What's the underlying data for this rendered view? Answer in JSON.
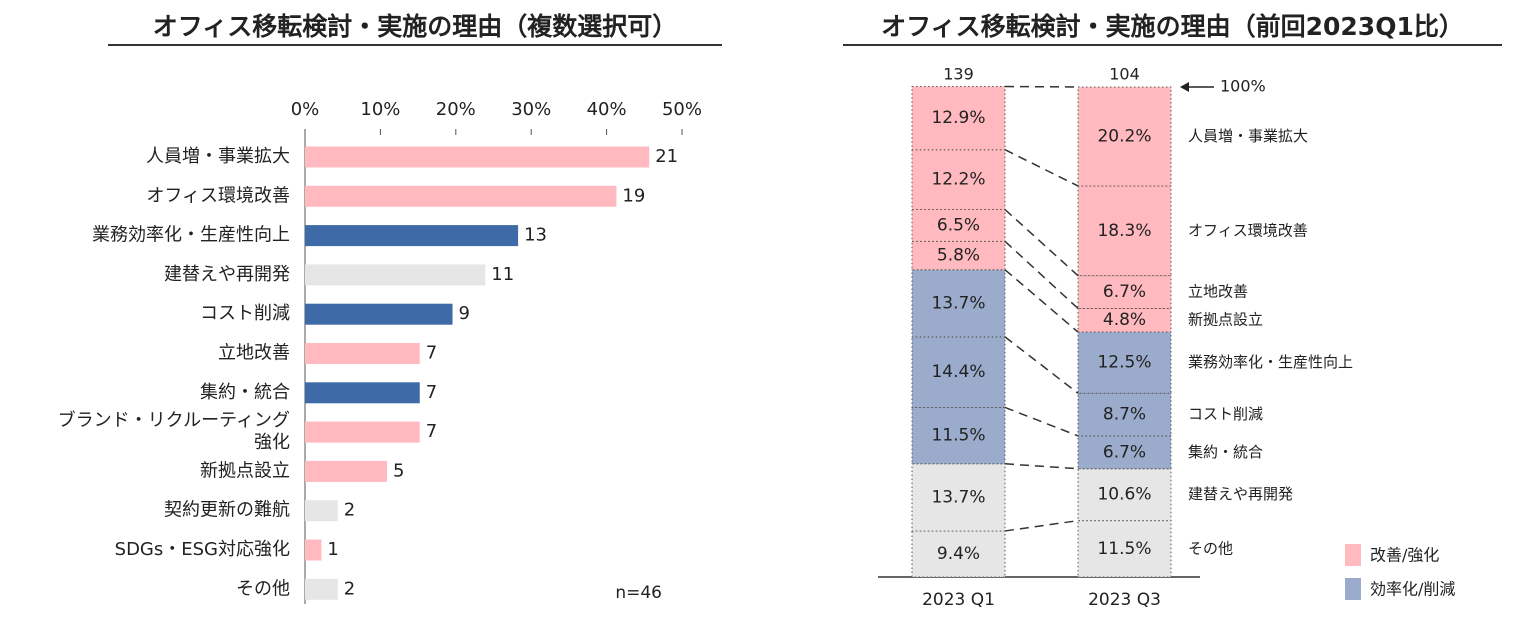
{
  "chart_data": [
    {
      "type": "hbar",
      "title": "オフィス移転検討・実施の理由（複数選択可）",
      "categories": [
        "人員増・事業拡大",
        "オフィス環境改善",
        "業務効率化・生産性向上",
        "建替えや再開発",
        "コスト削減",
        "立地改善",
        "集約・統合",
        "ブランド・リクルーティング\n強化",
        "新拠点設立",
        "契約更新の難航",
        "SDGs・ESG対応強化",
        "その他"
      ],
      "values": [
        21,
        19,
        13,
        11,
        9,
        7,
        7,
        7,
        5,
        2,
        1,
        2
      ],
      "colors": [
        "#ffb9bf",
        "#ffb9bf",
        "#3f6aa8",
        "#e6e6e6",
        "#3f6aa8",
        "#ffb9bf",
        "#3f6aa8",
        "#ffb9bf",
        "#ffb9bf",
        "#e6e6e6",
        "#ffb9bf",
        "#e6e6e6"
      ],
      "xlim": [
        0,
        23
      ],
      "xticks": [
        {
          "value": 0,
          "label": "0%"
        },
        {
          "value": 4.6,
          "label": "10%"
        },
        {
          "value": 9.2,
          "label": "20%"
        },
        {
          "value": 13.8,
          "label": "30%"
        },
        {
          "value": 18.4,
          "label": "40%"
        },
        {
          "value": 23,
          "label": "50%"
        }
      ],
      "annotation": "n=46"
    },
    {
      "type": "stacked100",
      "title": "オフィス移転検討・実施の理由（前回2023Q1比）",
      "categories": [
        "2023 Q1",
        "2023 Q3"
      ],
      "totals": [
        139,
        104
      ],
      "ylim": [
        0,
        100
      ],
      "annotation": "100%",
      "series": [
        {
          "name": "その他",
          "color": "#e6e6e6",
          "values": [
            9.4,
            11.5
          ],
          "value_labels": [
            "9.4%",
            "11.5%"
          ]
        },
        {
          "name": "建替えや再開発",
          "color": "#e6e6e6",
          "values": [
            13.7,
            10.6
          ],
          "value_labels": [
            "13.7%",
            "10.6%"
          ]
        },
        {
          "name": "集約・統合",
          "color": "#9aabcb",
          "values": [
            11.5,
            6.7
          ],
          "value_labels": [
            "11.5%",
            "6.7%"
          ]
        },
        {
          "name": "コスト削減",
          "color": "#9aabcb",
          "values": [
            14.4,
            8.7
          ],
          "value_labels": [
            "14.4%",
            "8.7%"
          ]
        },
        {
          "name": "業務効率化・生産性向上",
          "color": "#9aabcb",
          "values": [
            13.7,
            12.5
          ],
          "value_labels": [
            "13.7%",
            "12.5%"
          ]
        },
        {
          "name": "新拠点設立",
          "color": "#ffb9bf",
          "values": [
            5.8,
            4.8
          ],
          "value_labels": [
            "5.8%",
            "4.8%"
          ]
        },
        {
          "name": "立地改善",
          "color": "#ffb9bf",
          "values": [
            6.5,
            6.7
          ],
          "value_labels": [
            "6.5%",
            "6.7%"
          ]
        },
        {
          "name": "オフィス環境改善",
          "color": "#ffb9bf",
          "values": [
            12.2,
            18.3
          ],
          "value_labels": [
            "12.2%",
            "18.3%"
          ]
        },
        {
          "name": "人員増・事業拡大",
          "color": "#ffb9bf",
          "values": [
            12.9,
            20.2
          ],
          "value_labels": [
            "12.9%",
            "20.2%"
          ]
        }
      ],
      "legend": [
        {
          "name": "改善/強化",
          "color": "#ffb9bf"
        },
        {
          "name": "効率化/削減",
          "color": "#9aabcb"
        }
      ]
    }
  ]
}
